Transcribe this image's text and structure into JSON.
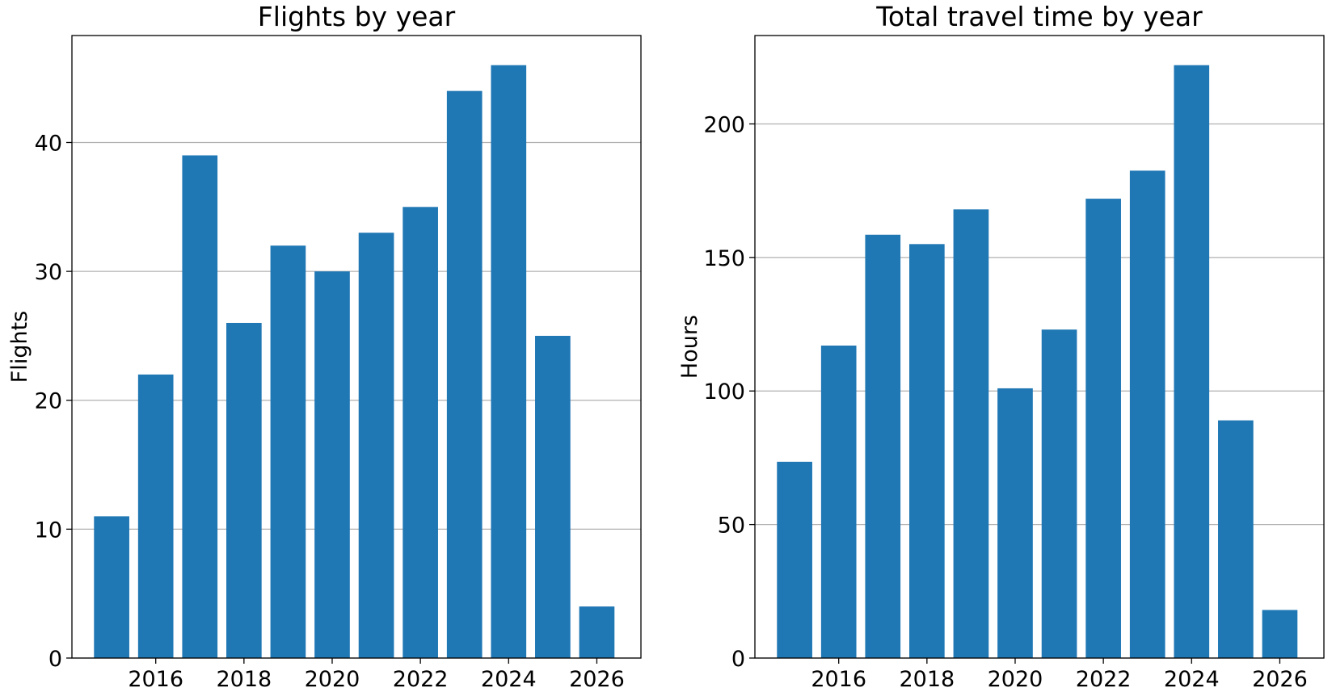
{
  "chart_data": [
    {
      "type": "bar",
      "title": "Flights by year",
      "xlabel": "",
      "ylabel": "Flights",
      "x": [
        2015,
        2016,
        2017,
        2018,
        2019,
        2020,
        2021,
        2022,
        2023,
        2024,
        2025,
        2026
      ],
      "values": [
        11,
        22,
        39,
        26,
        32,
        30,
        33,
        35,
        44,
        46,
        25,
        4
      ],
      "xticks": [
        2016,
        2018,
        2020,
        2022,
        2024,
        2026
      ],
      "yticks": [
        0,
        10,
        20,
        30,
        40
      ],
      "xlim": [
        2014.1,
        2027.0
      ],
      "ylim": [
        0,
        48.3
      ],
      "grid": "y",
      "bar_color": "#1f77b4"
    },
    {
      "type": "bar",
      "title": "Total travel time by year",
      "xlabel": "",
      "ylabel": "Hours",
      "x": [
        2015,
        2016,
        2017,
        2018,
        2019,
        2020,
        2021,
        2022,
        2023,
        2024,
        2025,
        2026
      ],
      "values": [
        73.5,
        117,
        158.5,
        155,
        168,
        101,
        123,
        172,
        182.5,
        222,
        89,
        18
      ],
      "xticks": [
        2016,
        2018,
        2020,
        2022,
        2024,
        2026
      ],
      "yticks": [
        0,
        50,
        100,
        150,
        200
      ],
      "xlim": [
        2014.1,
        2027.0
      ],
      "ylim": [
        0,
        233.1
      ],
      "grid": "y",
      "bar_color": "#1f77b4"
    }
  ]
}
